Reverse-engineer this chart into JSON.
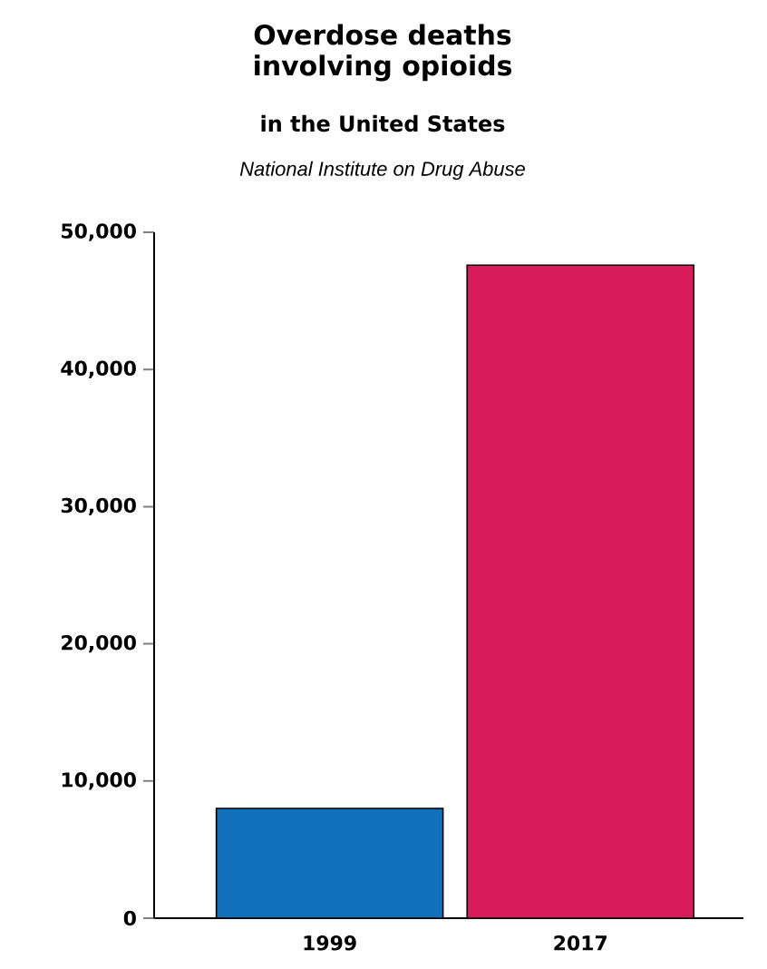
{
  "chart_data": {
    "type": "bar",
    "title": "Overdose deaths involving opioids",
    "subtitle": "in the United States",
    "annotations": [
      "National Institute on Drug Abuse"
    ],
    "categories": [
      "1999",
      "2017"
    ],
    "values": [
      8000,
      47600
    ],
    "colors": [
      "#1170bc",
      "#d81b5a"
    ],
    "ylim": [
      0,
      50000
    ],
    "yticks": [
      0,
      {
        "value": 10000,
        "label": "10,000"
      },
      {
        "value": 20000,
        "label": "20,000"
      },
      {
        "value": 30000,
        "label": "30,000"
      },
      {
        "value": 40000,
        "label": "40,000"
      },
      {
        "value": 50000,
        "label": "50,000"
      }
    ]
  }
}
